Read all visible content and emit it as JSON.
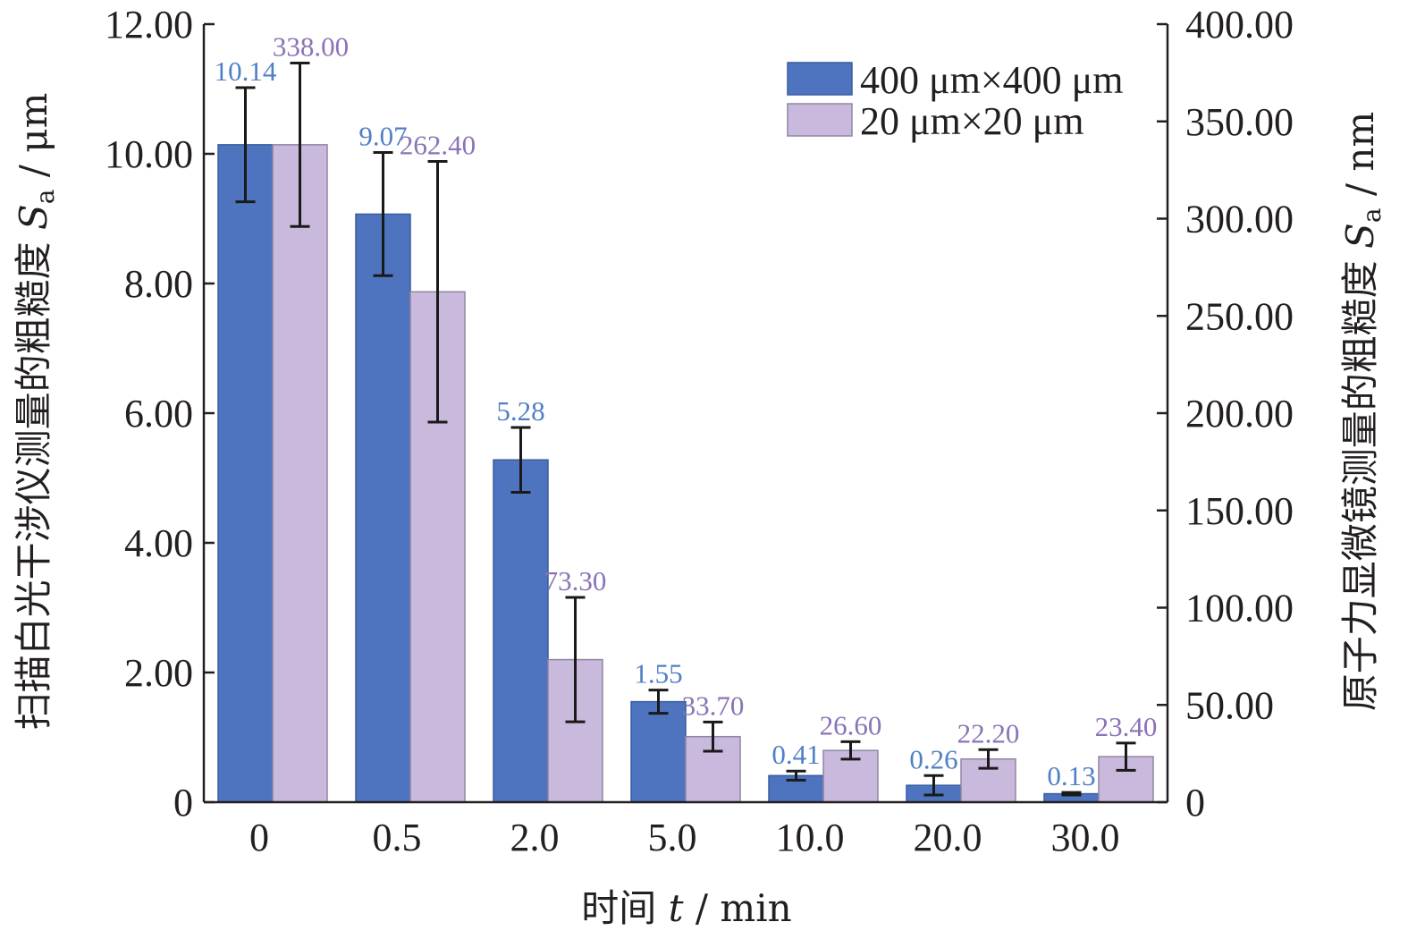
{
  "chart_data": {
    "type": "bar",
    "categories": [
      "0",
      "0.5",
      "2.0",
      "5.0",
      "10.0",
      "20.0",
      "30.0"
    ],
    "xlabel": {
      "prefix": "时间 ",
      "italic": "t",
      "suffix": " / min"
    },
    "ylabel_left": {
      "prefix": "扫描白光干涉仪测量的粗糙度 ",
      "italic": "S",
      "sub": "a",
      "suffix": " / μm"
    },
    "ylabel_right": {
      "prefix": "原子力显微镜测量的粗糙度 ",
      "italic": "S",
      "sub": "a",
      "suffix": " / nm"
    },
    "ylim_left": [
      0,
      12
    ],
    "ylim_right": [
      0,
      400
    ],
    "yticks_left": [
      "0",
      "2.00",
      "4.00",
      "6.00",
      "8.00",
      "10.00",
      "12.00"
    ],
    "yticks_right": [
      "0",
      "50.00",
      "100.00",
      "150.00",
      "200.00",
      "250.00",
      "300.00",
      "350.00",
      "400.00"
    ],
    "legend_position": "top-right",
    "series": [
      {
        "name": "400 μm×400 μm",
        "axis": "left",
        "color": "#4e74c0",
        "label_color": "#4f7fc7",
        "values": [
          10.14,
          9.07,
          5.28,
          1.55,
          0.41,
          0.26,
          0.13
        ],
        "labels": [
          "10.14",
          "9.07",
          "5.28",
          "1.55",
          "0.41",
          "0.26",
          "0.13"
        ],
        "error": [
          0.88,
          0.95,
          0.5,
          0.18,
          0.07,
          0.15,
          0.02
        ]
      },
      {
        "name": "20 μm×20 μm",
        "axis": "right",
        "color": "#c9b9dc",
        "label_color": "#8a73b6",
        "values": [
          338.0,
          262.4,
          73.3,
          33.7,
          26.6,
          22.2,
          23.4
        ],
        "labels": [
          "338.00",
          "262.40",
          "73.30",
          "33.70",
          "26.60",
          "22.20",
          "23.40"
        ],
        "error": [
          42,
          67,
          32,
          7.5,
          4.5,
          4.8,
          7
        ]
      }
    ]
  }
}
